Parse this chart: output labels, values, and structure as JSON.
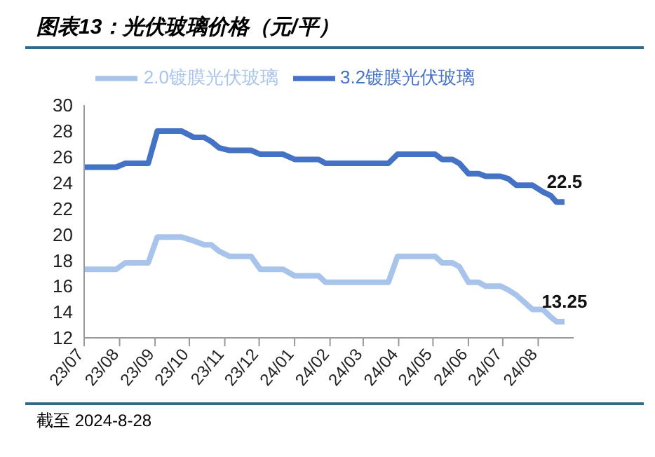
{
  "chart_data": {
    "type": "line",
    "title": "图表13：光伏玻璃价格（元/平）",
    "x": [
      "2023-07-01",
      "2023-07-29",
      "2023-08-06",
      "2023-08-26",
      "2023-09-03",
      "2023-09-24",
      "2023-10-05",
      "2023-10-14",
      "2023-10-20",
      "2023-10-27",
      "2023-11-05",
      "2023-11-24",
      "2023-12-02",
      "2023-12-22",
      "2024-01-01",
      "2024-01-22",
      "2024-01-28",
      "2024-03-23",
      "2024-03-31",
      "2024-05-03",
      "2024-05-09",
      "2024-05-18",
      "2024-05-24",
      "2024-06-01",
      "2024-06-10",
      "2024-06-16",
      "2024-06-29",
      "2024-07-06",
      "2024-07-13",
      "2024-07-27",
      "2024-08-05",
      "2024-08-12",
      "2024-08-17",
      "2024-08-24"
    ],
    "series": [
      {
        "name": "3.2镀膜光伏玻璃",
        "color": "#4472c4",
        "values": [
          25.2,
          25.2,
          25.5,
          25.5,
          28,
          28,
          27.5,
          27.5,
          27.2,
          26.7,
          26.5,
          26.5,
          26.2,
          26.2,
          25.8,
          25.8,
          25.5,
          25.5,
          26.2,
          26.2,
          25.8,
          25.8,
          25.5,
          24.7,
          24.7,
          24.5,
          24.5,
          24.3,
          23.8,
          23.8,
          23.3,
          23,
          22.5,
          22.5
        ],
        "value_labels": [
          null,
          null,
          null,
          null,
          null,
          null,
          null,
          null,
          null,
          null,
          null,
          null,
          null,
          null,
          null,
          null,
          null,
          null,
          null,
          null,
          null,
          null,
          null,
          null,
          null,
          null,
          null,
          null,
          null,
          null,
          null,
          null,
          null,
          "22.5"
        ]
      },
      {
        "name": "2.0镀膜光伏玻璃",
        "color": "#a9c4eb",
        "values": [
          17.3,
          17.3,
          17.8,
          17.8,
          19.8,
          19.8,
          19.5,
          19.2,
          19.2,
          18.7,
          18.3,
          18.3,
          17.3,
          17.3,
          16.8,
          16.8,
          16.3,
          16.3,
          18.3,
          18.3,
          17.8,
          17.8,
          17.5,
          16.3,
          16.3,
          16,
          16,
          15.7,
          15.3,
          14.2,
          14.2,
          13.6,
          13.25,
          13.25
        ],
        "value_labels": [
          null,
          null,
          null,
          null,
          null,
          null,
          null,
          null,
          null,
          null,
          null,
          null,
          null,
          null,
          null,
          null,
          null,
          null,
          null,
          null,
          null,
          null,
          null,
          null,
          null,
          null,
          null,
          null,
          null,
          null,
          null,
          null,
          null,
          "13.25"
        ]
      }
    ],
    "xlim": [
      "2023-07-01",
      "2024-09-01"
    ],
    "xticks": [
      {
        "value": "2023-07-01",
        "label": "23/07"
      },
      {
        "value": "2023-08-01",
        "label": "23/08"
      },
      {
        "value": "2023-09-01",
        "label": "23/09"
      },
      {
        "value": "2023-10-01",
        "label": "23/10"
      },
      {
        "value": "2023-11-01",
        "label": "23/11"
      },
      {
        "value": "2023-12-01",
        "label": "23/12"
      },
      {
        "value": "2024-01-01",
        "label": "24/01"
      },
      {
        "value": "2024-02-01",
        "label": "24/02"
      },
      {
        "value": "2024-03-01",
        "label": "24/03"
      },
      {
        "value": "2024-04-01",
        "label": "24/04"
      },
      {
        "value": "2024-05-01",
        "label": "24/05"
      },
      {
        "value": "2024-06-01",
        "label": "24/06"
      },
      {
        "value": "2024-07-01",
        "label": "24/07"
      },
      {
        "value": "2024-08-01",
        "label": "24/08"
      }
    ],
    "ylim": [
      12,
      30
    ],
    "yticks": [
      12,
      14,
      16,
      18,
      20,
      22,
      24,
      26,
      28,
      30
    ],
    "grid": false,
    "legend": "top",
    "marker": "none",
    "line_style": "solid",
    "annotations": [
      "截至 2024-8-28"
    ]
  }
}
